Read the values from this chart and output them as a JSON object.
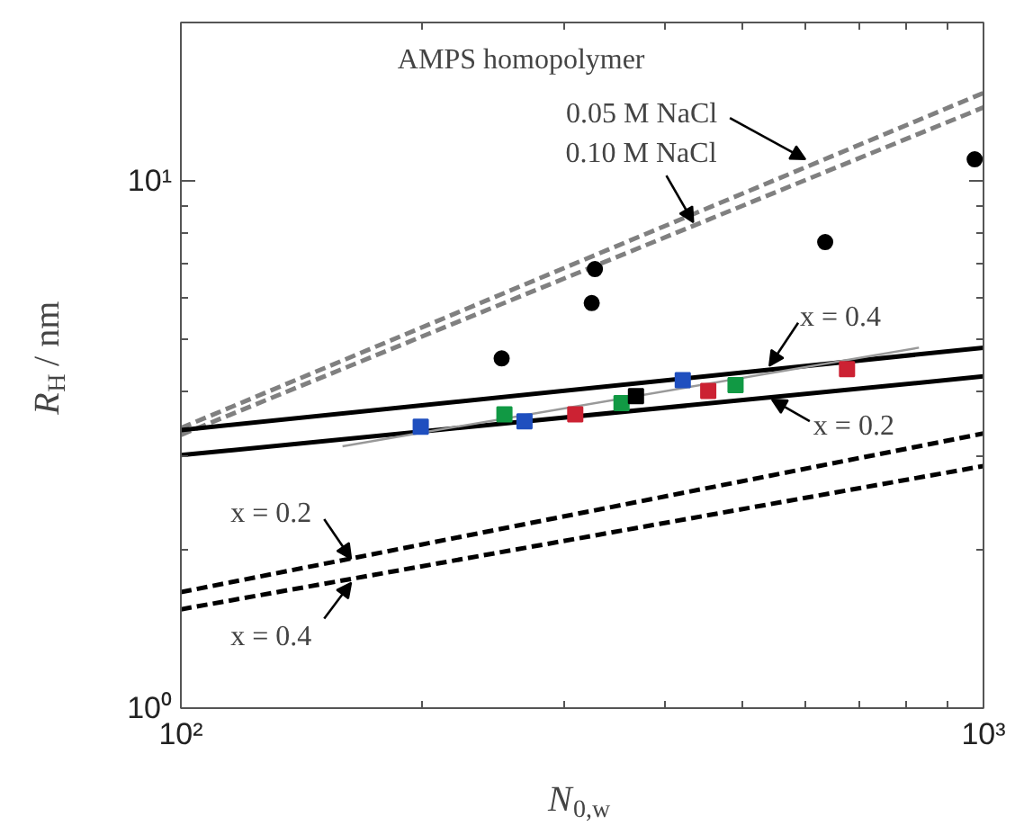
{
  "chart_data": {
    "type": "line",
    "xlabel": "N$_{0,w}$",
    "ylabel": "R$_{H}$ / nm",
    "log": "xy",
    "xlim": [
      100,
      1000
    ],
    "ylim": [
      1,
      20
    ],
    "xticks": [
      {
        "value": 100,
        "label": "10²"
      },
      {
        "value": 1000,
        "label": "10³"
      }
    ],
    "yticks": [
      {
        "value": 1,
        "label": "10⁰"
      },
      {
        "value": 10,
        "label": "10¹"
      }
    ],
    "grid": false,
    "series": [
      {
        "color": "#808080",
        "line_style": "dashed",
        "x": [
          100,
          1000
        ],
        "values": [
          3.4,
          14.7
        ]
      },
      {
        "color": "#808080",
        "line_style": "dashed",
        "x": [
          100,
          1000
        ],
        "values": [
          3.3,
          13.8
        ]
      },
      {
        "color": "#000000",
        "line_style": "solid",
        "x": [
          100,
          1000
        ],
        "values": [
          3.37,
          4.83
        ]
      },
      {
        "color": "#000000",
        "line_style": "solid",
        "x": [
          100,
          1000
        ],
        "values": [
          3.02,
          4.26
        ]
      },
      {
        "color": "#000000",
        "line_style": "dashed",
        "x": [
          100,
          1000
        ],
        "values": [
          1.66,
          3.32
        ]
      },
      {
        "color": "#000000",
        "line_style": "dashed",
        "x": [
          100,
          1000
        ],
        "values": [
          1.54,
          2.88
        ]
      },
      {
        "color": "#999999",
        "line_style": "solid",
        "x": [
          159,
          831
        ],
        "values": [
          3.14,
          4.83
        ]
      },
      {
        "type": "scatter",
        "marker": "circle",
        "color": "#000000",
        "x": [
          251,
          328,
          325,
          635,
          975
        ],
        "values": [
          4.61,
          6.81,
          5.87,
          7.66,
          11.0
        ]
      },
      {
        "type": "scatter",
        "marker": "square",
        "color": "#1f4fbf",
        "x": [
          199,
          268,
          422
        ],
        "values": [
          3.42,
          3.5,
          4.19
        ]
      },
      {
        "type": "scatter",
        "marker": "square",
        "color": "#119944",
        "x": [
          253,
          354,
          491
        ],
        "values": [
          3.61,
          3.79,
          4.1
        ]
      },
      {
        "type": "scatter",
        "marker": "square",
        "color": "#cc2233",
        "x": [
          310,
          454,
          676
        ],
        "values": [
          3.61,
          4.0,
          4.4
        ]
      },
      {
        "type": "scatter",
        "marker": "square",
        "color": "#000000",
        "x": [
          369
        ],
        "values": [
          3.91
        ]
      }
    ],
    "annotations": [
      "AMPS homopolymer",
      {
        "text": "0.05 M NaCl",
        "x": 600,
        "y": 11.0
      },
      {
        "text": "0.10 M NaCl",
        "x": 435,
        "y": 8.35
      },
      {
        "text": "x = 0.4",
        "x": 541,
        "y": 4.46
      },
      {
        "text": "x = 0.2",
        "x": 545,
        "y": 3.85
      },
      {
        "text": "x = 0.2",
        "x": 163,
        "y": 1.92
      },
      {
        "text": "x = 0.4",
        "x": 163,
        "y": 1.73
      }
    ]
  }
}
